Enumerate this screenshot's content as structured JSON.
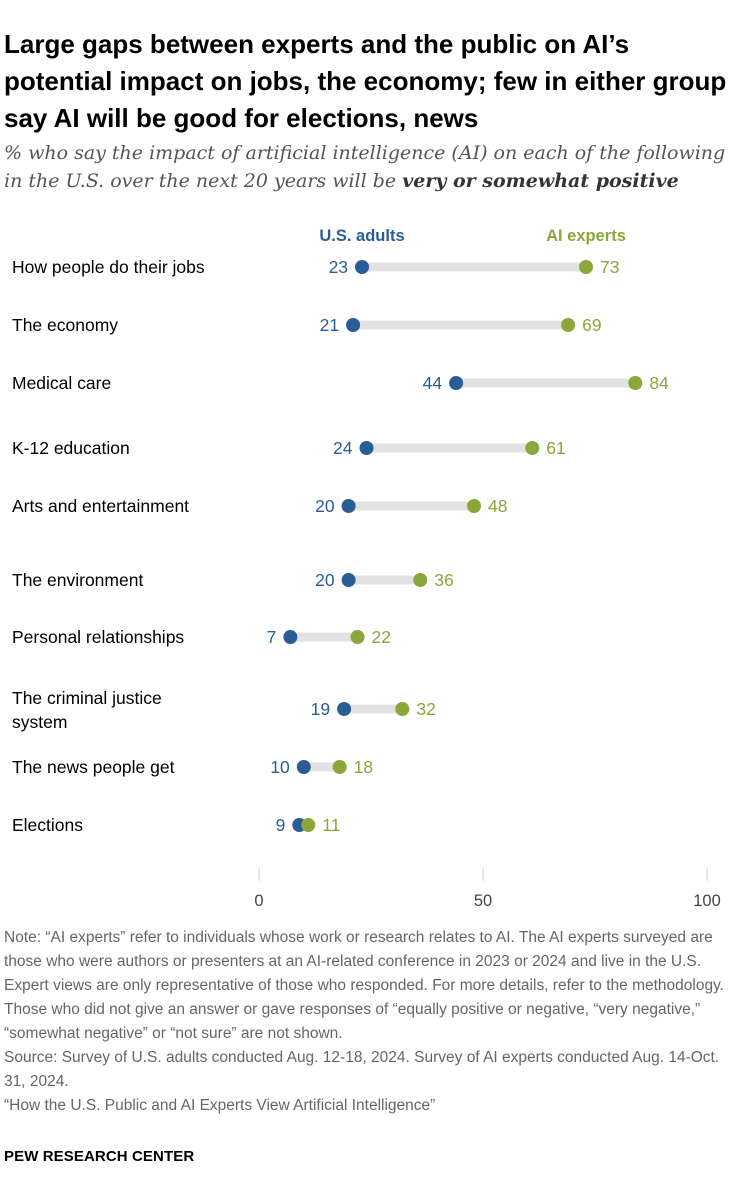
{
  "title": "Large gaps between experts and the public on AI’s potential impact on jobs, the economy; few in either group say AI will be good for elections, news",
  "subtitle_prefix": "% who say the impact of artificial intelligence (AI) on each of the following in the U.S. over the next 20 years will be ",
  "subtitle_emphasis": "very or somewhat positive",
  "colors": {
    "us_adults": "#2a5d96",
    "ai_experts": "#8ba63b",
    "connector": "#e2e2e2",
    "tick_text": "#444444",
    "axis_tick": "#cccccc"
  },
  "chart_data": {
    "type": "dot",
    "categories": [
      "How people do their jobs",
      "The economy",
      "Medical care",
      "K-12 education",
      "Arts and entertainment",
      "The environment",
      "Personal relationships",
      "The criminal justice system",
      "The news people get",
      "Elections"
    ],
    "series": [
      {
        "name": "U.S. adults",
        "values": [
          23,
          21,
          44,
          24,
          20,
          20,
          7,
          19,
          10,
          9
        ]
      },
      {
        "name": "AI experts",
        "values": [
          73,
          69,
          84,
          61,
          48,
          36,
          22,
          32,
          18,
          11
        ]
      }
    ],
    "xlim": [
      0,
      100
    ],
    "xticks": [
      0,
      50,
      100
    ],
    "grid": false,
    "legend": "top"
  },
  "note": "Note: “AI experts” refer to individuals whose work or research relates to AI. The AI experts surveyed are those who were authors or presenters at an AI-related conference in 2023 or 2024 and live in the U.S. Expert views are only representative of those who responded. For more details, refer to the methodology. Those who did not give an answer or gave responses of “equally positive or negative, “very negative,” “somewhat negative” or “not sure” are not shown.",
  "source": "Source: Survey of U.S. adults conducted Aug. 12-18, 2024. Survey of AI experts conducted Aug. 14-Oct. 31, 2024.",
  "report": "“How the U.S. Public and AI Experts View Artificial Intelligence”",
  "footer": "PEW RESEARCH CENTER"
}
